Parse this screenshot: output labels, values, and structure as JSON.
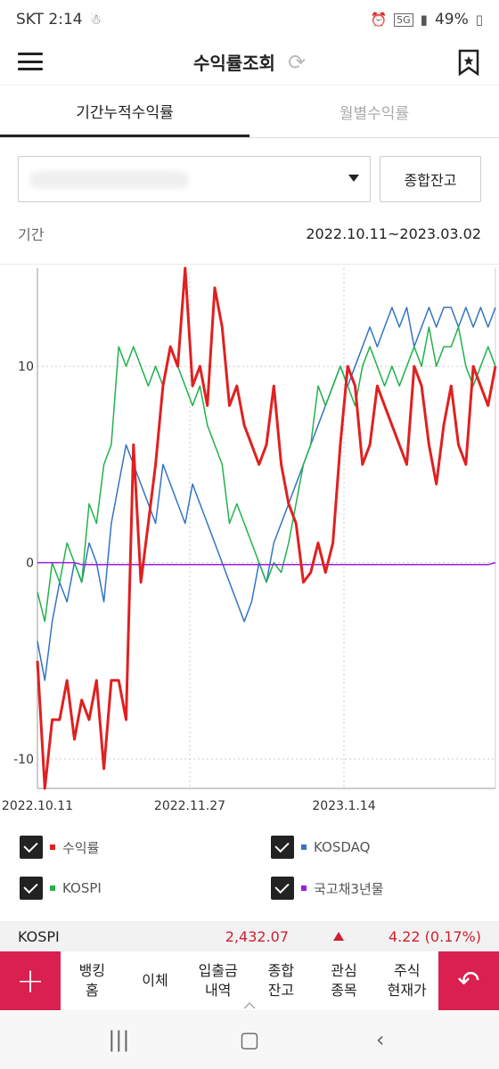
{
  "status_bar": {
    "carrier_time": "SKT 2:14",
    "network": "5G",
    "battery": "49%"
  },
  "header": {
    "title": "수익률조회"
  },
  "tabs": [
    {
      "label": "기간누적수익률",
      "active": true
    },
    {
      "label": "월별수익률",
      "active": false
    }
  ],
  "controls": {
    "summary_button": "종합잔고"
  },
  "period": {
    "label": "기간",
    "value": "2022.10.11~2023.03.02"
  },
  "chart_data": {
    "type": "line",
    "x_labels": [
      "2022.10.11",
      "2022.11.27",
      "2023.1.14"
    ],
    "y_ticks": [
      "10",
      "0",
      "-10"
    ],
    "ylim": [
      -11.5,
      15
    ],
    "grid": true,
    "series": [
      {
        "name": "수익률",
        "color": "#e02020",
        "values": [
          -5,
          -11.5,
          -8,
          -8,
          -6,
          -9,
          -7,
          -8,
          -6,
          -10.5,
          -6,
          -6,
          -8,
          6,
          -1,
          2,
          5,
          9,
          11,
          10,
          15,
          9,
          10,
          8,
          14,
          12,
          8,
          9,
          7,
          6,
          5,
          6,
          9,
          5,
          3,
          2,
          -1,
          -0.5,
          1,
          -0.5,
          1,
          6,
          10,
          9,
          5,
          6,
          9,
          8,
          7,
          6,
          5,
          10,
          9,
          6,
          4,
          7,
          9,
          6,
          5,
          10,
          9,
          8,
          10
        ]
      },
      {
        "name": "KOSPI",
        "color": "#22b24c",
        "values": [
          -1.5,
          -3,
          0,
          -1,
          1,
          0,
          -1,
          3,
          2,
          5,
          6,
          11,
          10,
          11,
          10,
          9,
          10,
          9,
          11,
          10,
          9,
          8,
          9,
          7,
          6,
          5,
          2,
          3,
          2,
          1,
          0,
          -1,
          0,
          -0.5,
          1,
          3,
          5,
          6,
          9,
          8,
          9,
          10,
          9,
          8,
          10,
          11,
          10,
          9,
          10,
          9,
          10,
          11,
          10,
          12,
          10,
          11,
          11,
          12,
          10,
          9,
          10,
          11,
          10
        ]
      },
      {
        "name": "KOSDAQ",
        "color": "#3374c4",
        "values": [
          -4,
          -6,
          -3,
          -1,
          -2,
          0,
          -1,
          1,
          0,
          -2,
          2,
          4,
          6,
          5,
          4,
          3,
          2,
          5,
          4,
          3,
          2,
          4,
          3,
          2,
          1,
          0,
          -1,
          -2,
          -3,
          -2,
          0,
          -1,
          1,
          2,
          3,
          4,
          5,
          6,
          7,
          8,
          9,
          10,
          9,
          10,
          11,
          12,
          11,
          12,
          13,
          12,
          13,
          11,
          12,
          13,
          12,
          13,
          13,
          12,
          13,
          12,
          13,
          12,
          13
        ]
      },
      {
        "name": "국고채3년물",
        "color": "#9a1ee0",
        "values": [
          0,
          0,
          0,
          0,
          0,
          0,
          -0.1,
          -0.1,
          -0.1,
          -0.1,
          -0.1,
          -0.1,
          -0.1,
          -0.1,
          -0.1,
          -0.1,
          -0.1,
          -0.1,
          -0.1,
          -0.1,
          -0.1,
          -0.1,
          -0.1,
          -0.1,
          -0.1,
          -0.1,
          -0.1,
          -0.1,
          -0.1,
          -0.1,
          -0.1,
          -0.1,
          -0.1,
          -0.1,
          -0.1,
          -0.1,
          -0.1,
          -0.1,
          -0.1,
          -0.1,
          -0.1,
          -0.1,
          -0.1,
          -0.1,
          -0.1,
          -0.1,
          -0.1,
          -0.1,
          -0.1,
          -0.1,
          -0.1,
          -0.1,
          -0.1,
          -0.1,
          -0.1,
          -0.1,
          -0.1,
          -0.1,
          -0.1,
          -0.1,
          -0.1,
          -0.1,
          0
        ]
      }
    ]
  },
  "legend": [
    {
      "label": "수익률",
      "color": "#e02020"
    },
    {
      "label": "KOSDAQ",
      "color": "#3374c4"
    },
    {
      "label": "KOSPI",
      "color": "#22b24c"
    },
    {
      "label": "국고채3년물",
      "color": "#9a1ee0"
    }
  ],
  "ticker": {
    "name": "KOSPI",
    "price": "2,432.07",
    "change": "4.22 (0.17%)"
  },
  "bottom_nav": {
    "items": [
      {
        "line1": "뱅킹",
        "line2": "홈"
      },
      {
        "line1": "이체",
        "line2": ""
      },
      {
        "line1": "입출금",
        "line2": "내역"
      },
      {
        "line1": "종합",
        "line2": "잔고"
      },
      {
        "line1": "관심",
        "line2": "종목"
      },
      {
        "line1": "주식",
        "line2": "현재가"
      }
    ]
  }
}
